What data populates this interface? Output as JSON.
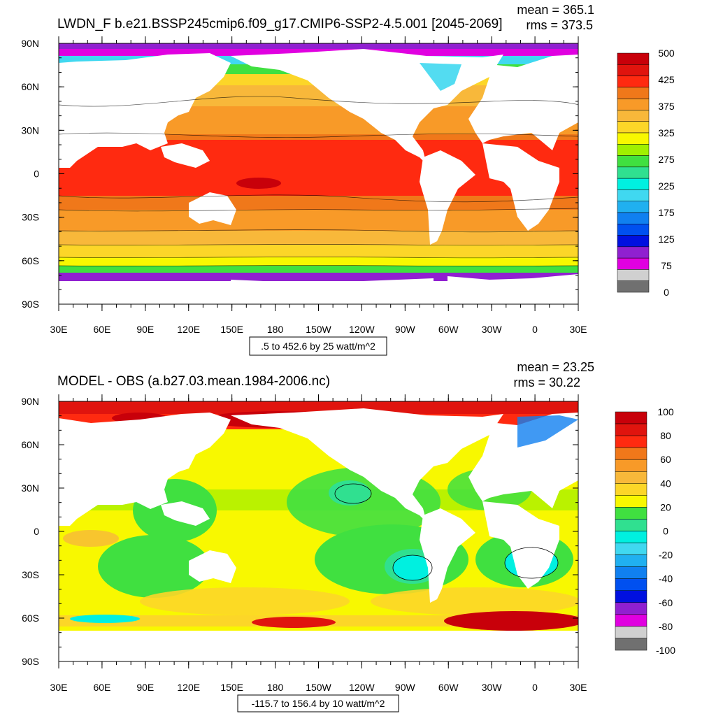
{
  "panels": [
    {
      "title": "LWDN_F b.e21.BSSP245cmip6.f09_g17.CMIP6-SSP2-4.5.001 [2045-2069]",
      "mean": "mean = 365.1",
      "rms": "rms = 373.5",
      "range_label": ".5 to 452.6 by 25 watt/m^2",
      "legend_labels": [
        "500",
        "425",
        "375",
        "325",
        "275",
        "225",
        "175",
        "125",
        "75",
        "0"
      ],
      "legend_colors": [
        "#c8000a",
        "#e0140e",
        "#ff2a10",
        "#f0781a",
        "#f89a28",
        "#f8b83a",
        "#fcd628",
        "#f8f800",
        "#a0f000",
        "#40e040",
        "#30e090",
        "#00f0e0",
        "#40d8f0",
        "#20b0f0",
        "#1080f0",
        "#0050f0",
        "#0010e0",
        "#9020d0",
        "#e000e0",
        "#d0d0d0",
        "#707070"
      ]
    },
    {
      "title": "MODEL - OBS (a.b27.03.mean.1984-2006.nc)",
      "mean": "mean = 23.25",
      "rms": "rms = 30.22",
      "range_label": "-115.7 to 156.4 by 10 watt/m^2",
      "legend_labels": [
        "100",
        "80",
        "60",
        "40",
        "20",
        "0",
        "-20",
        "-40",
        "-60",
        "-80",
        "-100"
      ],
      "legend_colors": [
        "#c8000a",
        "#e0140e",
        "#ff2a10",
        "#f0781a",
        "#f89a28",
        "#f8b83a",
        "#fcd628",
        "#f8f800",
        "#40e040",
        "#30e090",
        "#00f0e0",
        "#40d8f0",
        "#20b0f0",
        "#1080f0",
        "#0050f0",
        "#0010e0",
        "#9020d0",
        "#e000e0",
        "#d0d0d0",
        "#707070"
      ]
    }
  ],
  "axes": {
    "lat_labels": [
      "90N",
      "60N",
      "30N",
      "0",
      "30S",
      "60S",
      "90S"
    ],
    "lon_labels": [
      "30E",
      "60E",
      "90E",
      "120E",
      "150E",
      "180",
      "150W",
      "120W",
      "90W",
      "60W",
      "30W",
      "0",
      "30E"
    ]
  }
}
